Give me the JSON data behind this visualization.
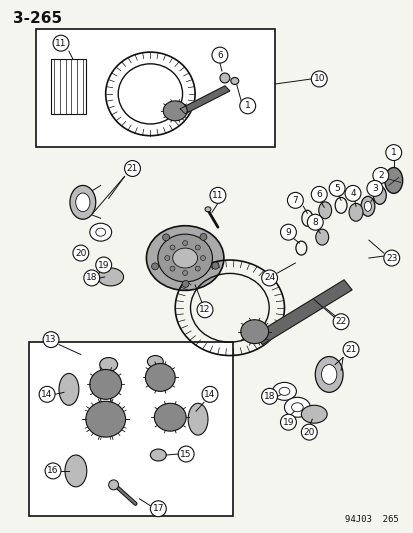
{
  "title": "3–265",
  "bg_color": "#f5f5f0",
  "text_color": "#000000",
  "footer": "94J03  265",
  "line_color": "#111111",
  "gear_fill": "#888888",
  "part_fill": "#bbbbbb",
  "white": "#ffffff"
}
